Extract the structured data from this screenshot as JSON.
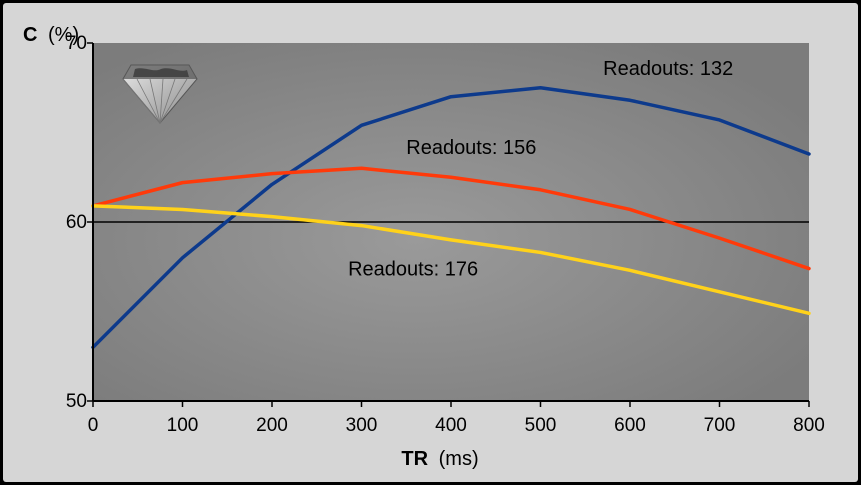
{
  "chart_data": {
    "type": "line",
    "xlabel_bold": "TR",
    "xlabel_unit": "(ms)",
    "ylabel_bold": "C",
    "ylabel_unit": "(%)",
    "xlim": [
      0,
      800
    ],
    "ylim": [
      50,
      70
    ],
    "x_ticks": [
      0,
      100,
      200,
      300,
      400,
      500,
      600,
      700,
      800
    ],
    "y_ticks": [
      50,
      60,
      70
    ],
    "reference_line_y": 60,
    "grid": false,
    "x": [
      0,
      100,
      200,
      300,
      400,
      500,
      600,
      700,
      800
    ],
    "series": [
      {
        "name": "Readouts: 132",
        "color": "#0d3a8c",
        "values": [
          53.0,
          58.0,
          62.1,
          65.4,
          67.0,
          67.5,
          66.8,
          65.7,
          63.8
        ]
      },
      {
        "name": "Readouts: 156",
        "color": "#ff3a0a",
        "values": [
          60.9,
          62.2,
          62.7,
          63.0,
          62.5,
          61.8,
          60.7,
          59.1,
          57.4
        ]
      },
      {
        "name": "Readouts: 176",
        "color": "#ffd21a",
        "values": [
          60.9,
          60.7,
          60.3,
          59.8,
          59.0,
          58.3,
          57.3,
          56.1,
          54.9
        ]
      }
    ],
    "label_anchors": [
      {
        "series": 0,
        "x": 570,
        "y": 68.2
      },
      {
        "series": 1,
        "x": 350,
        "y": 63.8
      },
      {
        "series": 2,
        "x": 285,
        "y": 57.0
      }
    ]
  },
  "logo_icon": "diamond-icon"
}
